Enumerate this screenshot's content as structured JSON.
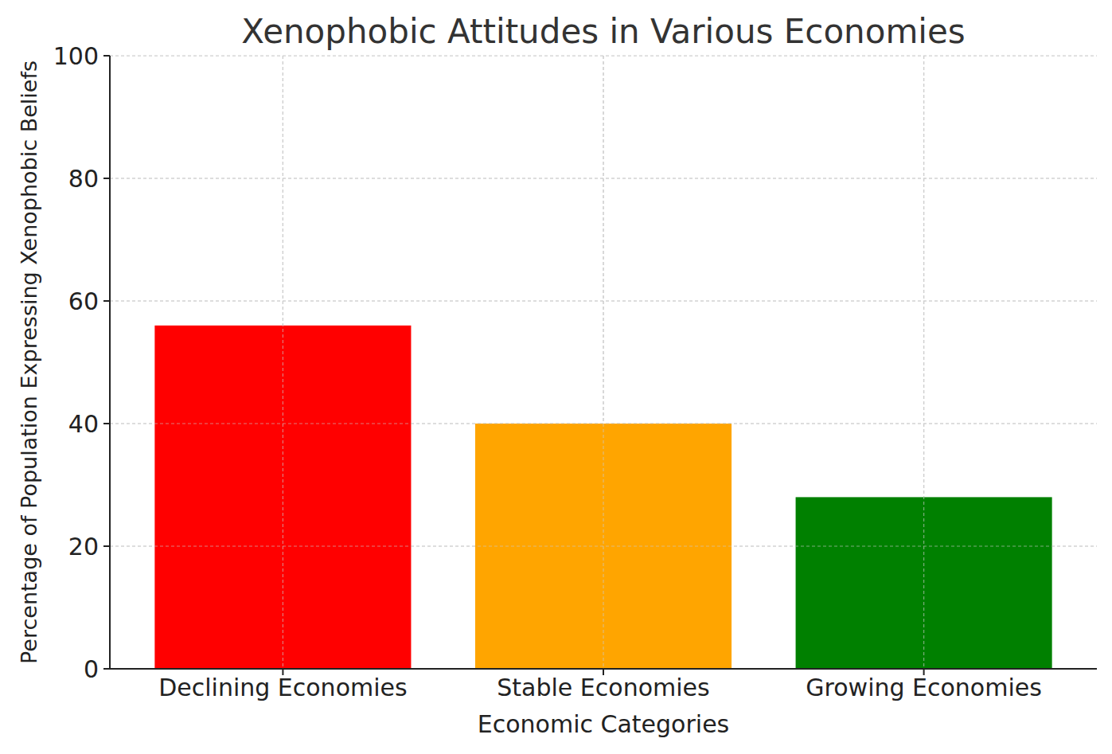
{
  "chart_data": {
    "type": "bar",
    "title": "Xenophobic Attitudes in Various Economies",
    "x_label": "Economic Categories",
    "y_label": "Percentage of Population Expressing Xenophobic Beliefs",
    "categories": [
      "Declining Economies",
      "Stable Economies",
      "Growing Economies"
    ],
    "values": [
      56,
      40,
      28
    ],
    "colors": [
      "#ff0000",
      "#ffa500",
      "#008000"
    ],
    "ylim": [
      0,
      100
    ],
    "yticks": [
      0,
      20,
      40,
      60,
      80,
      100
    ],
    "grid": true
  }
}
